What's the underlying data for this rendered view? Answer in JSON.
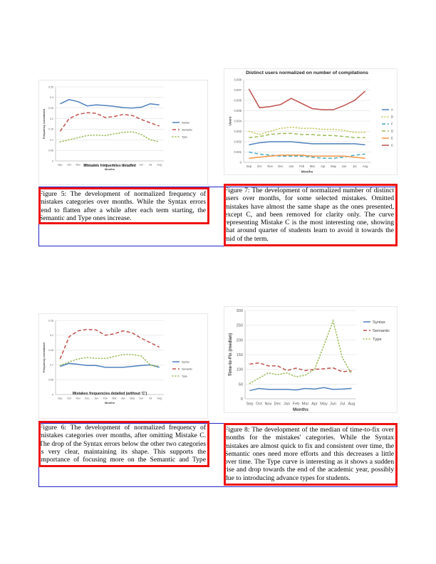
{
  "figures": [
    {
      "id": "fig5",
      "caption": "Figure 5: The development of normalized frequency of mistakes categories over months. While the Syntax errors tend to flatten after a while after each term starting, the Semantic and Type ones increase."
    },
    {
      "id": "fig7",
      "caption": "Figure 7: The development of normalized number of distinct users over months, for some selected mistakes. Omitted mistakes have almost the same shape as the ones presented, except C, and been removed for clarity only. The curve representing Mistake C is the most interesting one, showing that around quarter of students learn to avoid it towards the mid of the term."
    },
    {
      "id": "fig6",
      "caption": "Figure 6: The development of normalized frequency of mistakes categories over months, after omitting Mistake C. The drop of the Syntax errors below the other two categories is very clear, maintaining its shape.  This supports the importance of focusing more on the Semantic and Type errors."
    },
    {
      "id": "fig8",
      "caption": "Figure 8: The development of the median of time-to-fix over months for the mistakes' categories. While the Syntax mistakes are almost quick to fix and consistent over time, the Semantic ones need more efforts and this decreases a little over time. The Type curve is interesting as it shows a sudden rise and drop towards the end of the academic year, possibly due to introducing advance types for students."
    }
  ],
  "chart_data": [
    {
      "id": "fig5-chart",
      "type": "line",
      "title": "Mistakes frequencies detailed",
      "xlabel": "Months",
      "ylabel": "Frequency normalized",
      "categories": [
        "Sep",
        "Oct",
        "Nov",
        "Dec",
        "Jan",
        "Feb",
        "Mar",
        "Apr",
        "May",
        "Jun",
        "Jul",
        "Aug"
      ],
      "yticks": [
        "0",
        "0.05",
        "0.1",
        "0.15",
        "0.2",
        "0.25",
        "0.3",
        "0.35"
      ],
      "ylim": [
        0,
        0.35
      ],
      "series": [
        {
          "name": "Syntax",
          "color": "#4f81bd",
          "dash": "solid",
          "values": [
            0.27,
            0.29,
            0.28,
            0.26,
            0.265,
            0.262,
            0.258,
            0.252,
            0.25,
            0.254,
            0.27,
            0.265
          ]
        },
        {
          "name": "Semantic",
          "color": "#c0504d",
          "dash": "dash",
          "values": [
            0.14,
            0.2,
            0.22,
            0.228,
            0.225,
            0.205,
            0.21,
            0.22,
            0.215,
            0.196,
            0.18,
            0.165
          ]
        },
        {
          "name": "Type",
          "color": "#9bbb59",
          "dash": "dot",
          "values": [
            0.09,
            0.1,
            0.11,
            0.12,
            0.122,
            0.12,
            0.128,
            0.135,
            0.138,
            0.125,
            0.1,
            0.09
          ]
        }
      ]
    },
    {
      "id": "fig7-chart",
      "type": "line",
      "title": "Distinct users normalized on number of compilations",
      "xlabel": "Months",
      "ylabel": "Users",
      "categories": [
        "Sep",
        "Oct",
        "Nov",
        "Dec",
        "Jan",
        "Feb",
        "Mar",
        "Apr",
        "May",
        "Jun",
        "Jul",
        "Aug"
      ],
      "yticks": [
        "0",
        "0.001",
        "0.002",
        "0.003",
        "0.004",
        "0.005",
        "0.006",
        "0.007",
        "0.008"
      ],
      "ylim": [
        0,
        0.008
      ],
      "legend": [
        "A",
        "B",
        "F",
        "D",
        "E",
        "C"
      ],
      "series": [
        {
          "name": "A",
          "color": "#4f81bd",
          "dash": "solid",
          "values": [
            0.0017,
            0.0019,
            0.002,
            0.002,
            0.002,
            0.0019,
            0.0018,
            0.0018,
            0.0018,
            0.0018,
            0.0018,
            0.0017
          ]
        },
        {
          "name": "B",
          "color": "#c8c864",
          "dash": "dot",
          "values": [
            0.003,
            0.0027,
            0.003,
            0.0033,
            0.0034,
            0.0033,
            0.0033,
            0.0032,
            0.0032,
            0.0031,
            0.0029,
            0.0029
          ]
        },
        {
          "name": "F",
          "color": "#4bacc6",
          "dash": "dash",
          "values": [
            0.001,
            0.0008,
            0.0007,
            0.0006,
            0.0006,
            0.0006,
            0.0005,
            0.0004,
            0.0004,
            0.0005,
            0.0007,
            0.0008
          ]
        },
        {
          "name": "D",
          "color": "#9bbb59",
          "dash": "dash",
          "values": [
            0.0024,
            0.0025,
            0.0027,
            0.0028,
            0.0028,
            0.0027,
            0.0027,
            0.0026,
            0.0026,
            0.0025,
            0.0024,
            0.0024
          ]
        },
        {
          "name": "E",
          "color": "#f79646",
          "dash": "solid",
          "values": [
            0.0004,
            0.0005,
            0.0006,
            0.0007,
            0.0007,
            0.0007,
            0.0006,
            0.0006,
            0.0006,
            0.0006,
            0.0005,
            0.0004
          ]
        },
        {
          "name": "C",
          "color": "#c0504d",
          "dash": "solid",
          "values": [
            0.0071,
            0.0053,
            0.0054,
            0.0056,
            0.0062,
            0.0057,
            0.0052,
            0.0051,
            0.0051,
            0.0055,
            0.006,
            0.0069
          ]
        }
      ]
    },
    {
      "id": "fig6-chart",
      "type": "line",
      "title": "Mistakes frequencies detailed (without 'C')",
      "xlabel": "Months",
      "ylabel": "Frequency normalized",
      "categories": [
        "Sep",
        "Oct",
        "Nov",
        "Dec",
        "Jan",
        "Feb",
        "Mar",
        "Apr",
        "May",
        "Jun",
        "Jul",
        "Aug"
      ],
      "yticks": [
        "0",
        "0.05",
        "0.1",
        "0.15",
        "0.2",
        "0.25"
      ],
      "ylim": [
        0,
        0.25
      ],
      "series": [
        {
          "name": "Syntax",
          "color": "#4f81bd",
          "dash": "solid",
          "values": [
            0.095,
            0.105,
            0.102,
            0.098,
            0.098,
            0.092,
            0.092,
            0.092,
            0.095,
            0.098,
            0.1,
            0.092
          ]
        },
        {
          "name": "Semantic",
          "color": "#c0504d",
          "dash": "dash",
          "values": [
            0.12,
            0.195,
            0.215,
            0.22,
            0.218,
            0.2,
            0.205,
            0.215,
            0.208,
            0.19,
            0.175,
            0.16
          ]
        },
        {
          "name": "Type",
          "color": "#9bbb59",
          "dash": "dot",
          "values": [
            0.098,
            0.11,
            0.12,
            0.125,
            0.122,
            0.122,
            0.128,
            0.135,
            0.135,
            0.13,
            0.1,
            0.095
          ]
        }
      ]
    },
    {
      "id": "fig8-chart",
      "type": "line",
      "title": "",
      "xlabel": "Months",
      "ylabel": "Time-to-Fix (median)",
      "categories": [
        "Sep",
        "Oct",
        "Nov",
        "Dec",
        "Jan",
        "Feb",
        "Mar",
        "Apr",
        "May",
        "Jun",
        "Jul",
        "Aug"
      ],
      "yticks": [
        "0",
        "50",
        "100",
        "150",
        "200",
        "250",
        "300"
      ],
      "ylim": [
        0,
        300
      ],
      "series": [
        {
          "name": "Syntax",
          "color": "#4f81bd",
          "dash": "solid",
          "values": [
            28,
            35,
            32,
            32,
            32,
            30,
            35,
            33,
            38,
            32,
            33,
            35
          ]
        },
        {
          "name": "Semantic",
          "color": "#c0504d",
          "dash": "dash",
          "values": [
            118,
            122,
            112,
            112,
            96,
            104,
            96,
            100,
            102,
            105,
            92,
            95
          ]
        },
        {
          "name": "Type",
          "color": "#9bbb59",
          "dash": "dot",
          "values": [
            52,
            70,
            88,
            82,
            88,
            75,
            80,
            100,
            180,
            265,
            140,
            85
          ]
        }
      ]
    }
  ]
}
